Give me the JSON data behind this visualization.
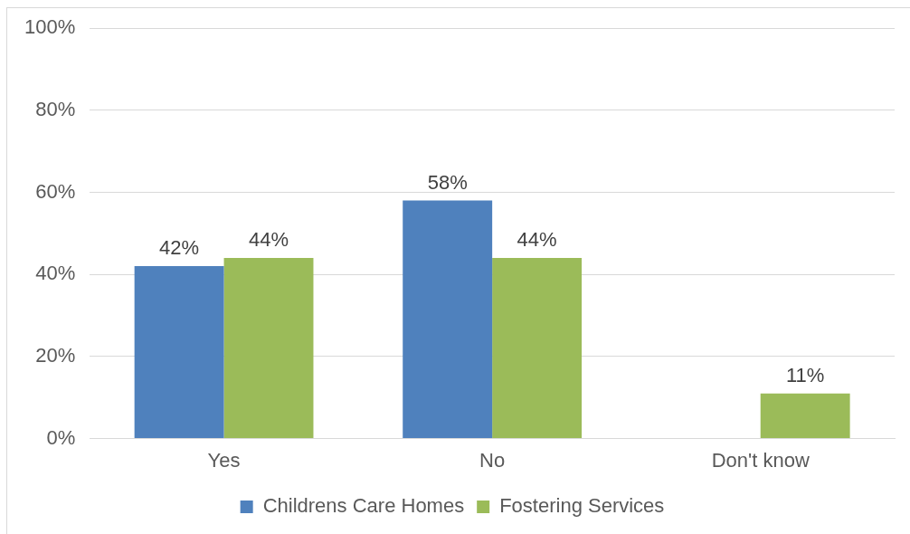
{
  "chart_data": {
    "type": "bar",
    "categories": [
      "Yes",
      "No",
      "Don't know"
    ],
    "series": [
      {
        "name": "Childrens Care Homes",
        "color": "#4f81bd",
        "values": [
          42,
          58,
          null
        ],
        "value_labels": [
          "42%",
          "58%",
          null
        ]
      },
      {
        "name": "Fostering Services",
        "color": "#9bbb59",
        "values": [
          44,
          44,
          11
        ],
        "value_labels": [
          "44%",
          "44%",
          "11%"
        ]
      }
    ],
    "ylim": [
      0,
      100
    ],
    "yticks": [
      {
        "value": 0,
        "label": "0%"
      },
      {
        "value": 20,
        "label": "20%"
      },
      {
        "value": 40,
        "label": "40%"
      },
      {
        "value": 60,
        "label": "60%"
      },
      {
        "value": 80,
        "label": "80%"
      },
      {
        "value": 100,
        "label": "100%"
      }
    ],
    "grid": "y",
    "legend": "bottom"
  }
}
